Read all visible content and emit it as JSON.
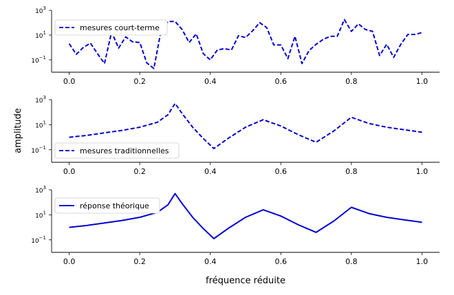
{
  "chart_data": [
    {
      "type": "line",
      "legend": "mesures court-terme",
      "legend_position": "top-left",
      "line_style": "dashed",
      "color": "#0000cc",
      "yscale": "log",
      "ylim_exp": [
        -2,
        3
      ],
      "yticks": [
        {
          "base": "10",
          "exp": "−1",
          "v": -1
        },
        {
          "base": "10",
          "exp": "1",
          "v": 1
        },
        {
          "base": "10",
          "exp": "3",
          "v": 3
        }
      ],
      "xlim": [
        -0.05,
        1.05
      ],
      "xticks": [
        "0.0",
        "0.2",
        "0.4",
        "0.6",
        "0.8",
        "1.0"
      ],
      "x": [
        0.0,
        0.02,
        0.04,
        0.06,
        0.08,
        0.1,
        0.12,
        0.14,
        0.16,
        0.18,
        0.2,
        0.22,
        0.24,
        0.26,
        0.28,
        0.3,
        0.32,
        0.34,
        0.36,
        0.38,
        0.4,
        0.42,
        0.44,
        0.46,
        0.48,
        0.5,
        0.52,
        0.54,
        0.56,
        0.58,
        0.6,
        0.62,
        0.64,
        0.66,
        0.68,
        0.7,
        0.72,
        0.74,
        0.76,
        0.78,
        0.8,
        0.82,
        0.84,
        0.86,
        0.88,
        0.9,
        0.92,
        0.94,
        0.96,
        0.98,
        1.0
      ],
      "log10_values": [
        0.3,
        -0.55,
        0.0,
        0.35,
        -0.5,
        -1.3,
        1.25,
        -0.05,
        0.85,
        0.45,
        0.4,
        -1.25,
        -1.7,
        1.3,
        2.1,
        2.1,
        1.45,
        0.4,
        1.1,
        -0.5,
        -1.0,
        -0.2,
        -0.1,
        -0.2,
        0.95,
        0.8,
        1.35,
        2.0,
        1.6,
        0.2,
        0.2,
        -0.9,
        0.9,
        -1.3,
        -0.25,
        0.25,
        0.65,
        0.9,
        0.9,
        2.25,
        1.3,
        1.9,
        1.45,
        1.3,
        -0.65,
        0.25,
        -0.8,
        0.25,
        1.05,
        1.05,
        1.2
      ]
    },
    {
      "type": "line",
      "legend": "mesures traditionnelles",
      "legend_position": "bottom-left",
      "line_style": "dashed",
      "color": "#0000cc",
      "yscale": "log",
      "ylim_exp": [
        -2,
        3
      ],
      "yticks": [
        {
          "base": "10",
          "exp": "−1",
          "v": -1
        },
        {
          "base": "10",
          "exp": "1",
          "v": 1
        },
        {
          "base": "10",
          "exp": "3",
          "v": 3
        }
      ],
      "xlim": [
        -0.05,
        1.05
      ],
      "xticks": [
        "0.0",
        "0.2",
        "0.4",
        "0.6",
        "0.8",
        "1.0"
      ],
      "ylabel": "amplitude",
      "x": [
        0.0,
        0.05,
        0.1,
        0.15,
        0.2,
        0.25,
        0.28,
        0.3,
        0.32,
        0.35,
        0.38,
        0.41,
        0.45,
        0.5,
        0.55,
        0.6,
        0.65,
        0.7,
        0.75,
        0.8,
        0.85,
        0.9,
        0.95,
        1.0
      ],
      "log10_values": [
        0.0,
        0.15,
        0.35,
        0.55,
        0.8,
        1.2,
        1.8,
        2.7,
        1.9,
        0.8,
        -0.1,
        -0.9,
        -0.1,
        0.8,
        1.4,
        0.9,
        0.2,
        -0.4,
        0.5,
        1.6,
        1.1,
        0.8,
        0.6,
        0.4
      ]
    },
    {
      "type": "line",
      "legend": "réponse théorique",
      "legend_position": "top-left",
      "line_style": "solid",
      "color": "#0000cc",
      "yscale": "log",
      "ylim_exp": [
        -2,
        3
      ],
      "yticks": [
        {
          "base": "10",
          "exp": "−1",
          "v": -1
        },
        {
          "base": "10",
          "exp": "1",
          "v": 1
        },
        {
          "base": "10",
          "exp": "3",
          "v": 3
        }
      ],
      "xlim": [
        -0.05,
        1.05
      ],
      "xticks": [
        "0.0",
        "0.2",
        "0.4",
        "0.6",
        "0.8",
        "1.0"
      ],
      "xlabel": "fréquence réduite",
      "x": [
        0.0,
        0.05,
        0.1,
        0.15,
        0.2,
        0.25,
        0.28,
        0.3,
        0.32,
        0.35,
        0.38,
        0.41,
        0.45,
        0.5,
        0.55,
        0.6,
        0.65,
        0.7,
        0.75,
        0.8,
        0.85,
        0.9,
        0.95,
        1.0
      ],
      "log10_values": [
        0.0,
        0.15,
        0.35,
        0.55,
        0.8,
        1.2,
        1.8,
        2.7,
        1.9,
        0.8,
        -0.1,
        -0.9,
        -0.1,
        0.8,
        1.4,
        0.9,
        0.2,
        -0.4,
        0.5,
        1.6,
        1.1,
        0.8,
        0.6,
        0.4
      ]
    }
  ]
}
